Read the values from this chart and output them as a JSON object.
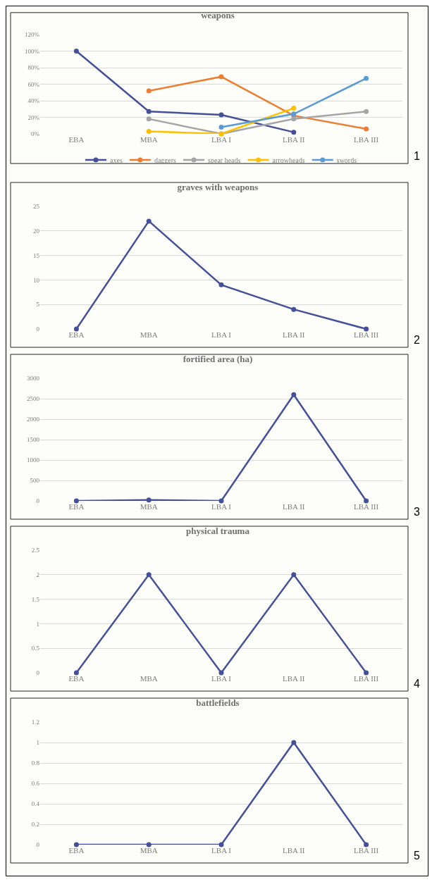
{
  "chart_data": [
    {
      "type": "line",
      "title": "weapons",
      "categories": [
        "EBA",
        "MBA",
        "LBA I",
        "LBA II",
        "LBA III"
      ],
      "series": [
        {
          "name": "axes",
          "color": "#44519a",
          "values": [
            100,
            27,
            23,
            2,
            null
          ]
        },
        {
          "name": "daggers",
          "color": "#ed7d31",
          "values": [
            null,
            52,
            69,
            22,
            6
          ]
        },
        {
          "name": "spear heads",
          "color": "#a5a5a5",
          "values": [
            null,
            18,
            0,
            18,
            27
          ]
        },
        {
          "name": "arrowheads",
          "color": "#ffc000",
          "values": [
            null,
            3,
            0,
            31,
            null
          ]
        },
        {
          "name": "swords",
          "color": "#5b9bd5",
          "values": [
            null,
            null,
            8,
            24,
            67
          ]
        }
      ],
      "ylim": [
        0,
        120
      ],
      "yticks": [
        {
          "value": 0,
          "label": "0%"
        },
        {
          "value": 20,
          "label": "20%"
        },
        {
          "value": 40,
          "label": "40%"
        },
        {
          "value": 60,
          "label": "60%"
        },
        {
          "value": 80,
          "label": "80%"
        },
        {
          "value": 100,
          "label": "100%"
        },
        {
          "value": 120,
          "label": "120%"
        }
      ],
      "grid": "y",
      "legend": "bottom",
      "marker": "circle",
      "line_style": "solid",
      "annotations": [
        "1"
      ]
    },
    {
      "type": "line",
      "title": "graves with weapons",
      "categories": [
        "EBA",
        "MBA",
        "LBA I",
        "LBA II",
        "LBA III"
      ],
      "series": [
        {
          "color": "#44519a",
          "values": [
            0,
            22,
            9,
            4,
            0
          ]
        }
      ],
      "ylim": [
        0,
        25
      ],
      "yticks": [
        0,
        5,
        10,
        15,
        20,
        25
      ],
      "grid": "y",
      "marker": "circle",
      "line_style": "solid",
      "annotations": [
        "2"
      ]
    },
    {
      "type": "line",
      "title": "fortified area (ha)",
      "categories": [
        "EBA",
        "MBA",
        "LBA I",
        "LBA II",
        "LBA III"
      ],
      "series": [
        {
          "color": "#44519a",
          "values": [
            0,
            20,
            0,
            2600,
            0
          ]
        }
      ],
      "ylim": [
        0,
        3000
      ],
      "yticks": [
        0,
        500,
        1000,
        1500,
        2000,
        2500,
        3000
      ],
      "grid": "y",
      "marker": "circle",
      "line_style": "solid",
      "annotations": [
        "3"
      ]
    },
    {
      "type": "line",
      "title": "physical trauma",
      "categories": [
        "EBA",
        "MBA",
        "LBA I",
        "LBA II",
        "LBA III"
      ],
      "series": [
        {
          "color": "#44519a",
          "values": [
            0,
            2,
            0,
            2,
            0
          ]
        }
      ],
      "ylim": [
        0,
        2.5
      ],
      "yticks": [
        0,
        0.5,
        1,
        1.5,
        2,
        2.5
      ],
      "grid": "y",
      "marker": "circle",
      "line_style": "solid",
      "annotations": [
        "4"
      ]
    },
    {
      "type": "line",
      "title": "battlefields",
      "categories": [
        "EBA",
        "MBA",
        "LBA I",
        "LBA II",
        "LBA III"
      ],
      "series": [
        {
          "color": "#44519a",
          "values": [
            0,
            0,
            0,
            1,
            0
          ]
        }
      ],
      "ylim": [
        0,
        1.2
      ],
      "yticks": [
        0,
        0.2,
        0.4,
        0.6,
        0.8,
        1,
        1.2
      ],
      "grid": "y",
      "marker": "circle",
      "line_style": "solid",
      "annotations": [
        "5"
      ]
    }
  ]
}
